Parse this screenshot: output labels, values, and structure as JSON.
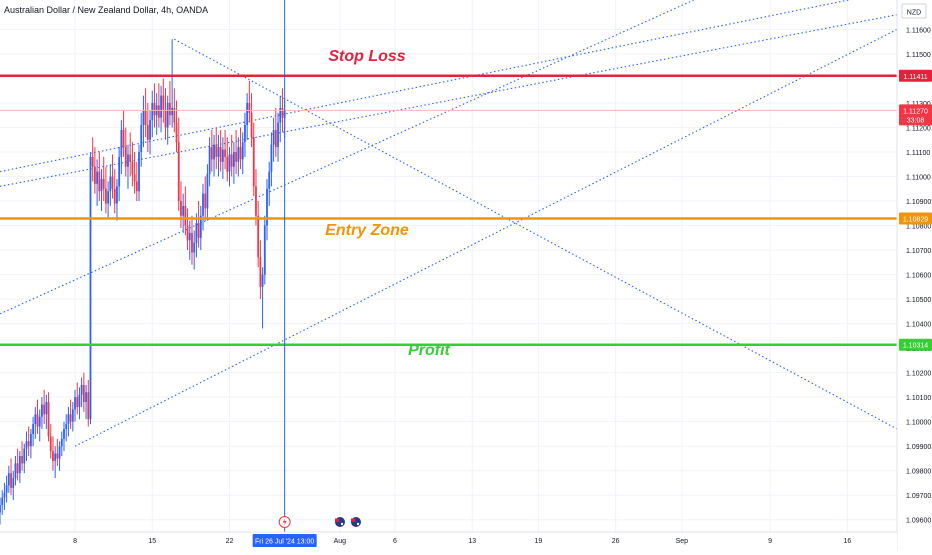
{
  "header": {
    "title": "Australian Dollar / New Zealand Dollar, 4h, OANDA"
  },
  "price_axis": {
    "currency": "NZD",
    "ticks": [
      "1.11600",
      "1.11500",
      "1.11300",
      "1.11200",
      "1.11100",
      "1.11000",
      "1.10900",
      "1.10800",
      "1.10700",
      "1.10600",
      "1.10500",
      "1.10400",
      "1.10300",
      "1.10200",
      "1.10100",
      "1.10000",
      "1.09900",
      "1.09800",
      "1.09700",
      "1.09600"
    ],
    "labels": {
      "stop_loss": "1.11411",
      "current": "1.11270",
      "countdown": "33:08",
      "entry": "1.10829",
      "profit": "1.10314"
    }
  },
  "time_axis": {
    "ticks": [
      {
        "label": "8",
        "day": 8
      },
      {
        "label": "15",
        "day": 15
      },
      {
        "label": "22",
        "day": 22
      },
      {
        "label": "Aug",
        "day": 32
      },
      {
        "label": "6",
        "day": 37
      },
      {
        "label": "13",
        "day": 44
      },
      {
        "label": "19",
        "day": 50
      },
      {
        "label": "26",
        "day": 57
      },
      {
        "label": "Sep",
        "day": 63
      },
      {
        "label": "9",
        "day": 71
      },
      {
        "label": "16",
        "day": 78
      }
    ],
    "crosshair_label": "Fri 26 Jul '24   13:00"
  },
  "annotations": {
    "stop_loss": "Stop Loss",
    "entry_zone": "Entry Zone",
    "profit": "Profit"
  },
  "colors": {
    "up": "#2962ff",
    "down": "#f23645",
    "stop_loss": "#e5213c",
    "entry": "#f2940a",
    "profit": "#33d033",
    "crosshair": "#2962ff",
    "trendline": "#2962ff"
  },
  "icons": [
    "lightning-event-icon",
    "australia-flag-icon",
    "new-zealand-flag-icon"
  ],
  "chart_data": {
    "type": "candlestick",
    "title": "Australian Dollar / New Zealand Dollar, 4h, OANDA",
    "x_unit": "day of Jul 2024 (Aug 1 = 32)",
    "ylim": [
      1.0955,
      1.1172
    ],
    "xlim": [
      1.2,
      82.5
    ],
    "horizontal_levels": [
      {
        "name": "Stop Loss",
        "value": 1.11411
      },
      {
        "name": "Entry Zone",
        "value": 1.10829
      },
      {
        "name": "Profit",
        "value": 1.10314
      }
    ],
    "crosshair": {
      "x": 27.0,
      "label": "Fri 26 Jul '24 13:00"
    },
    "current_price": 1.1127,
    "trendlines": [
      {
        "points": [
          [
            1.2,
            1.1096
          ],
          [
            82.5,
            1.1166
          ]
        ]
      },
      {
        "points": [
          [
            1.2,
            1.1044
          ],
          [
            68.0,
            1.118
          ]
        ]
      },
      {
        "points": [
          [
            17.0,
            1.1156
          ],
          [
            82.5,
            1.0997
          ]
        ]
      },
      {
        "points": [
          [
            8.0,
            1.099
          ],
          [
            82.5,
            1.116
          ]
        ]
      },
      {
        "points": [
          [
            1.2,
            1.1102
          ],
          [
            82.5,
            1.1176
          ]
        ]
      }
    ],
    "candles": [
      [
        1.2,
        1.0963,
        1.0969,
        1.0958,
        1.0966
      ],
      [
        1.4,
        1.0966,
        1.0972,
        1.0962,
        1.0969
      ],
      [
        1.6,
        1.0969,
        1.0975,
        1.0964,
        1.0971
      ],
      [
        1.8,
        1.0971,
        1.0978,
        1.0967,
        1.0974
      ],
      [
        2.0,
        1.0974,
        1.0982,
        1.0971,
        1.0979
      ],
      [
        2.2,
        1.0979,
        1.0985,
        1.097,
        1.0973
      ],
      [
        2.4,
        1.0973,
        1.098,
        1.0968,
        1.0977
      ],
      [
        2.6,
        1.0977,
        1.0986,
        1.0974,
        1.0983
      ],
      [
        2.8,
        1.0983,
        1.0989,
        1.0976,
        1.0979
      ],
      [
        3.0,
        1.0979,
        1.0988,
        1.0975,
        1.0986
      ],
      [
        3.2,
        1.0986,
        1.0992,
        1.098,
        1.0983
      ],
      [
        3.4,
        1.0983,
        1.0991,
        1.0979,
        1.0989
      ],
      [
        3.6,
        1.0989,
        1.0996,
        1.0984,
        1.0992
      ],
      [
        3.8,
        1.0992,
        1.0998,
        1.0986,
        1.099
      ],
      [
        4.0,
        1.099,
        1.0997,
        1.0985,
        1.0995
      ],
      [
        4.2,
        1.0995,
        1.1002,
        1.099,
        1.0999
      ],
      [
        4.4,
        1.0999,
        1.1006,
        1.0993,
        1.1003
      ],
      [
        4.6,
        1.1003,
        1.1009,
        1.0995,
        1.0998
      ],
      [
        4.8,
        1.0998,
        1.1005,
        1.0992,
        1.1002
      ],
      [
        5.0,
        1.1002,
        1.101,
        1.0997,
        1.1007
      ],
      [
        5.2,
        1.1007,
        1.1013,
        1.0999,
        1.1003
      ],
      [
        5.4,
        1.1003,
        1.1011,
        1.0997,
        1.1008
      ],
      [
        5.6,
        1.1008,
        1.1012,
        1.0992,
        1.0994
      ],
      [
        5.8,
        1.0994,
        1.0999,
        1.0985,
        1.0988
      ],
      [
        6.0,
        1.0988,
        1.0994,
        1.098,
        1.0984
      ],
      [
        6.2,
        1.0984,
        1.099,
        1.0977,
        1.0987
      ],
      [
        6.4,
        1.0987,
        1.0993,
        1.0982,
        1.0985
      ],
      [
        6.6,
        1.0985,
        1.0992,
        1.098,
        1.099
      ],
      [
        6.8,
        1.099,
        1.0996,
        1.0986,
        1.0993
      ],
      [
        7.0,
        1.0993,
        1.1,
        1.0988,
        1.0997
      ],
      [
        7.2,
        1.0997,
        1.1003,
        1.0992,
        1.0999
      ],
      [
        7.4,
        1.0999,
        1.1006,
        1.0994,
        1.1003
      ],
      [
        7.6,
        1.1003,
        1.1009,
        1.0997,
        1.1
      ],
      [
        7.8,
        1.1,
        1.1008,
        1.0996,
        1.1005
      ],
      [
        8.0,
        1.1005,
        1.1013,
        1.1,
        1.101
      ],
      [
        8.2,
        1.101,
        1.1016,
        1.1003,
        1.1006
      ],
      [
        8.4,
        1.1006,
        1.1014,
        1.1001,
        1.1011
      ],
      [
        8.6,
        1.1011,
        1.1018,
        1.1006,
        1.1015
      ],
      [
        8.8,
        1.1015,
        1.102,
        1.1004,
        1.1008
      ],
      [
        9.0,
        1.1008,
        1.1015,
        1.1001,
        1.1012
      ],
      [
        9.2,
        1.1012,
        1.1017,
        1.0998,
        1.1001
      ],
      [
        9.4,
        1.1001,
        1.111,
        1.0999,
        1.1108
      ],
      [
        9.6,
        1.1108,
        1.1116,
        1.1098,
        1.1104
      ],
      [
        9.8,
        1.1104,
        1.1112,
        1.1093,
        1.1097
      ],
      [
        10.0,
        1.1097,
        1.1107,
        1.1088,
        1.1102
      ],
      [
        10.2,
        1.1102,
        1.111,
        1.109,
        1.1094
      ],
      [
        10.4,
        1.1094,
        1.1103,
        1.1086,
        1.1099
      ],
      [
        10.6,
        1.1099,
        1.1108,
        1.109,
        1.1095
      ],
      [
        10.8,
        1.1095,
        1.1104,
        1.1085,
        1.1089
      ],
      [
        11.0,
        1.1089,
        1.1098,
        1.1083,
        1.1094
      ],
      [
        11.2,
        1.1094,
        1.1105,
        1.1088,
        1.11
      ],
      [
        11.4,
        1.11,
        1.1109,
        1.1091,
        1.1095
      ],
      [
        11.6,
        1.1095,
        1.1103,
        1.1085,
        1.1089
      ],
      [
        11.8,
        1.1089,
        1.1099,
        1.1082,
        1.1096
      ],
      [
        12.0,
        1.1096,
        1.1112,
        1.109,
        1.1108
      ],
      [
        12.2,
        1.1108,
        1.1123,
        1.1101,
        1.1119
      ],
      [
        12.4,
        1.1119,
        1.1127,
        1.1108,
        1.1112
      ],
      [
        12.6,
        1.1112,
        1.112,
        1.11,
        1.1104
      ],
      [
        12.8,
        1.1104,
        1.1113,
        1.1095,
        1.1109
      ],
      [
        13.0,
        1.1109,
        1.1118,
        1.11,
        1.1106
      ],
      [
        13.2,
        1.1106,
        1.1114,
        1.1096,
        1.1101
      ],
      [
        13.4,
        1.1101,
        1.111,
        1.1093,
        1.1098
      ],
      [
        13.6,
        1.1098,
        1.1106,
        1.109,
        1.1094
      ],
      [
        13.8,
        1.1094,
        1.1113,
        1.109,
        1.111
      ],
      [
        14.0,
        1.111,
        1.1126,
        1.1104,
        1.1121
      ],
      [
        14.2,
        1.1121,
        1.1133,
        1.1112,
        1.1127
      ],
      [
        14.4,
        1.1127,
        1.1136,
        1.1116,
        1.1121
      ],
      [
        14.6,
        1.1121,
        1.113,
        1.111,
        1.1115
      ],
      [
        14.8,
        1.1115,
        1.1127,
        1.1109,
        1.1123
      ],
      [
        15.0,
        1.1123,
        1.1135,
        1.1116,
        1.113
      ],
      [
        15.2,
        1.113,
        1.1138,
        1.112,
        1.1125
      ],
      [
        15.4,
        1.1125,
        1.1134,
        1.1117,
        1.1129
      ],
      [
        15.6,
        1.1129,
        1.1138,
        1.112,
        1.1124
      ],
      [
        15.8,
        1.1124,
        1.1137,
        1.1118,
        1.1133
      ],
      [
        16.0,
        1.1133,
        1.114,
        1.1122,
        1.1127
      ],
      [
        16.2,
        1.1127,
        1.1136,
        1.1115,
        1.112
      ],
      [
        16.4,
        1.112,
        1.1133,
        1.1113,
        1.113
      ],
      [
        16.6,
        1.113,
        1.1139,
        1.1121,
        1.1125
      ],
      [
        16.8,
        1.1125,
        1.1156,
        1.112,
        1.1128
      ],
      [
        17.0,
        1.1128,
        1.1136,
        1.1118,
        1.1122
      ],
      [
        17.2,
        1.1122,
        1.1131,
        1.111,
        1.1114
      ],
      [
        17.4,
        1.1114,
        1.1124,
        1.1086,
        1.109
      ],
      [
        17.6,
        1.109,
        1.1098,
        1.1079,
        1.1084
      ],
      [
        17.8,
        1.1084,
        1.1093,
        1.1077,
        1.1088
      ],
      [
        18.0,
        1.1088,
        1.1096,
        1.1076,
        1.108
      ],
      [
        18.2,
        1.108,
        1.1087,
        1.107,
        1.1074
      ],
      [
        18.4,
        1.1074,
        1.1082,
        1.1066,
        1.1077
      ],
      [
        18.6,
        1.1077,
        1.1084,
        1.1064,
        1.1069
      ],
      [
        18.8,
        1.1069,
        1.1078,
        1.1062,
        1.1073
      ],
      [
        19.0,
        1.1073,
        1.1085,
        1.1067,
        1.1081
      ],
      [
        19.2,
        1.1081,
        1.109,
        1.1071,
        1.1075
      ],
      [
        19.4,
        1.1075,
        1.1088,
        1.107,
        1.1084
      ],
      [
        19.6,
        1.1084,
        1.1097,
        1.1078,
        1.1093
      ],
      [
        19.8,
        1.1093,
        1.11,
        1.1082,
        1.1087
      ],
      [
        20.0,
        1.1087,
        1.1105,
        1.1082,
        1.1101
      ],
      [
        20.2,
        1.1101,
        1.1116,
        1.1096,
        1.1112
      ],
      [
        20.4,
        1.1112,
        1.1119,
        1.1102,
        1.1107
      ],
      [
        20.6,
        1.1107,
        1.1117,
        1.11,
        1.1113
      ],
      [
        20.8,
        1.1113,
        1.112,
        1.1103,
        1.1108
      ],
      [
        21.0,
        1.1108,
        1.1117,
        1.11,
        1.1112
      ],
      [
        21.2,
        1.1112,
        1.1119,
        1.1102,
        1.1106
      ],
      [
        21.4,
        1.1106,
        1.1116,
        1.1099,
        1.1111
      ],
      [
        21.6,
        1.1111,
        1.1119,
        1.1103,
        1.1108
      ],
      [
        21.8,
        1.1108,
        1.1116,
        1.1098,
        1.1102
      ],
      [
        22.0,
        1.1102,
        1.1112,
        1.1096,
        1.1109
      ],
      [
        22.2,
        1.1109,
        1.1117,
        1.11,
        1.1104
      ],
      [
        22.4,
        1.1104,
        1.1114,
        1.1097,
        1.111
      ],
      [
        22.6,
        1.111,
        1.1119,
        1.1101,
        1.1106
      ],
      [
        22.8,
        1.1106,
        1.1116,
        1.11,
        1.1112
      ],
      [
        23.0,
        1.1112,
        1.112,
        1.1103,
        1.1107
      ],
      [
        23.2,
        1.1107,
        1.1118,
        1.1101,
        1.1114
      ],
      [
        23.4,
        1.1114,
        1.1126,
        1.1108,
        1.1121
      ],
      [
        23.6,
        1.1121,
        1.1134,
        1.1115,
        1.113
      ],
      [
        23.8,
        1.113,
        1.1139,
        1.1122,
        1.1126
      ],
      [
        24.0,
        1.1126,
        1.1134,
        1.1112,
        1.1116
      ],
      [
        24.2,
        1.1116,
        1.1122,
        1.1092,
        1.1096
      ],
      [
        24.4,
        1.1096,
        1.1103,
        1.108,
        1.1084
      ],
      [
        24.6,
        1.1084,
        1.109,
        1.1063,
        1.1067
      ],
      [
        24.8,
        1.1067,
        1.1074,
        1.105,
        1.1055
      ],
      [
        25.0,
        1.1055,
        1.1063,
        1.1038,
        1.106
      ],
      [
        25.2,
        1.106,
        1.1084,
        1.1056,
        1.108
      ],
      [
        25.4,
        1.108,
        1.1099,
        1.1074,
        1.1095
      ],
      [
        25.6,
        1.1095,
        1.1106,
        1.1088,
        1.1102
      ],
      [
        25.8,
        1.1102,
        1.1118,
        1.1096,
        1.1113
      ],
      [
        26.0,
        1.1113,
        1.1124,
        1.1106,
        1.1119
      ],
      [
        26.2,
        1.1119,
        1.1128,
        1.1108,
        1.1112
      ],
      [
        26.4,
        1.1112,
        1.1126,
        1.1106,
        1.1122
      ],
      [
        26.6,
        1.1122,
        1.1133,
        1.1114,
        1.1128
      ],
      [
        26.8,
        1.1128,
        1.1136,
        1.1118,
        1.1124
      ],
      [
        27.0,
        1.1124,
        1.1132,
        1.1116,
        1.1127
      ]
    ]
  }
}
